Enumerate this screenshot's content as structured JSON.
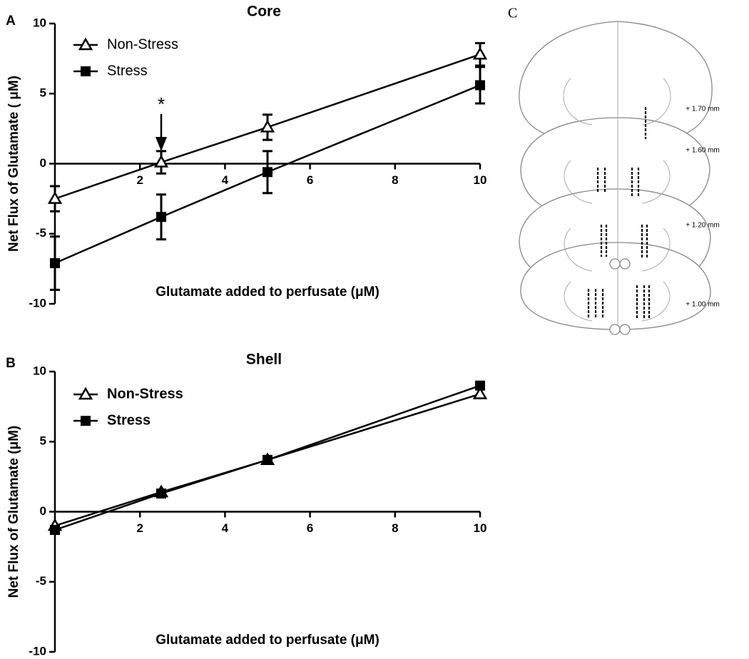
{
  "chart_data": [
    {
      "type": "line",
      "panel": "A",
      "title": "Core",
      "x_label": "Glutamate added to perfusate (μM)",
      "y_label": "Net Flux of Glutamate ( μM)",
      "annotation": "*",
      "x": [
        0,
        2.5,
        5,
        10
      ],
      "xlim": [
        0,
        10
      ],
      "ylim": [
        -10,
        10
      ],
      "xticks": [
        2,
        4,
        6,
        8,
        10
      ],
      "yticks": [
        -10,
        -5,
        0,
        5,
        10
      ],
      "legend": "upper left",
      "series": [
        {
          "name": "Non-Stress",
          "color": "#000000",
          "marker": "open-triangle",
          "values": [
            -2.5,
            0.1,
            2.6,
            7.8
          ],
          "errors": [
            0.9,
            0.8,
            0.9,
            0.8
          ]
        },
        {
          "name": "Stress",
          "color": "#000000",
          "marker": "filled-square",
          "values": [
            -7.1,
            -3.8,
            -0.6,
            5.6
          ],
          "errors": [
            1.9,
            1.6,
            1.5,
            1.3
          ]
        }
      ]
    },
    {
      "type": "line",
      "panel": "B",
      "title": "Shell",
      "x_label": "Glutamate added to perfusate (μM)",
      "y_label": "Net Flux of Glutamate (μM)",
      "x": [
        0,
        2.5,
        5,
        10
      ],
      "xlim": [
        0,
        10
      ],
      "ylim": [
        -10,
        10
      ],
      "xticks": [
        2,
        4,
        6,
        8,
        10
      ],
      "yticks": [
        -10,
        -5,
        0,
        5,
        10
      ],
      "legend": "upper left",
      "series": [
        {
          "name": "Non-Stress",
          "color": "#000000",
          "marker": "open-triangle",
          "values": [
            -1.0,
            1.4,
            3.7,
            8.4
          ]
        },
        {
          "name": "Stress",
          "color": "#000000",
          "marker": "filled-square",
          "values": [
            -1.3,
            1.3,
            3.7,
            9.0
          ]
        }
      ]
    }
  ],
  "panel_c": {
    "label": "C",
    "levels": [
      "+ 1.70 mm",
      "+ 1.60 mm",
      "+ 1.20 mm",
      "+ 1.00 mm"
    ]
  }
}
